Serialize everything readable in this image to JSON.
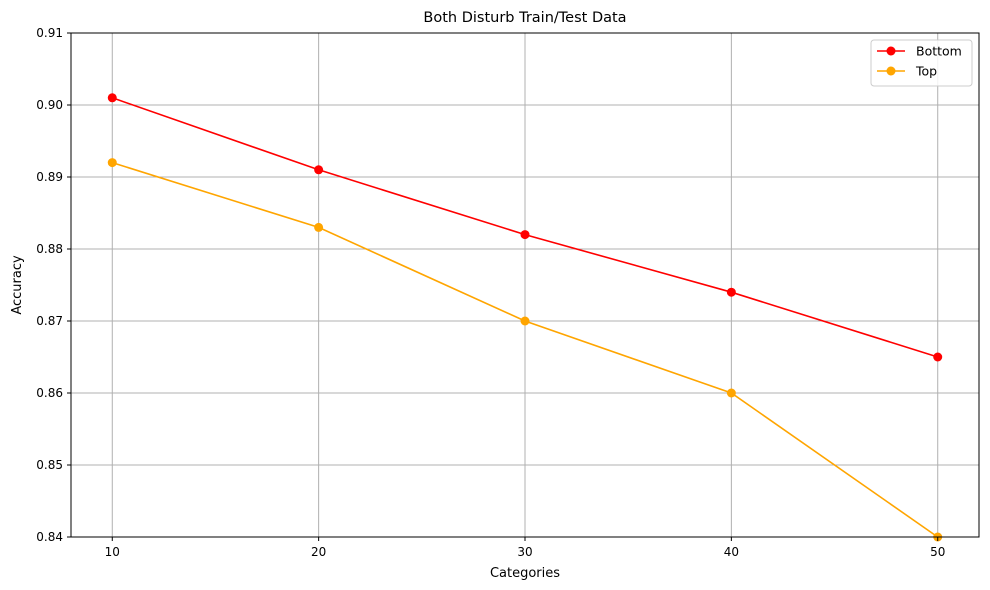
{
  "chart_data": {
    "type": "line",
    "title": "Both Disturb Train/Test Data",
    "xlabel": "Categories",
    "ylabel": "Accuracy",
    "x": [
      10,
      20,
      30,
      40,
      50
    ],
    "xlim": [
      8,
      52
    ],
    "ylim": [
      0.84,
      0.91
    ],
    "xticks": [
      "10",
      "20",
      "30",
      "40",
      "50"
    ],
    "yticks": [
      "0.84",
      "0.85",
      "0.86",
      "0.87",
      "0.88",
      "0.89",
      "0.90",
      "0.91"
    ],
    "grid": true,
    "legend_position": "top-right",
    "series": [
      {
        "name": "Bottom",
        "color": "#ff0000",
        "marker": "circle",
        "values": [
          0.901,
          0.891,
          0.882,
          0.874,
          0.865
        ]
      },
      {
        "name": "Top",
        "color": "#ffa500",
        "marker": "circle",
        "values": [
          0.892,
          0.883,
          0.87,
          0.86,
          0.84
        ]
      }
    ]
  }
}
